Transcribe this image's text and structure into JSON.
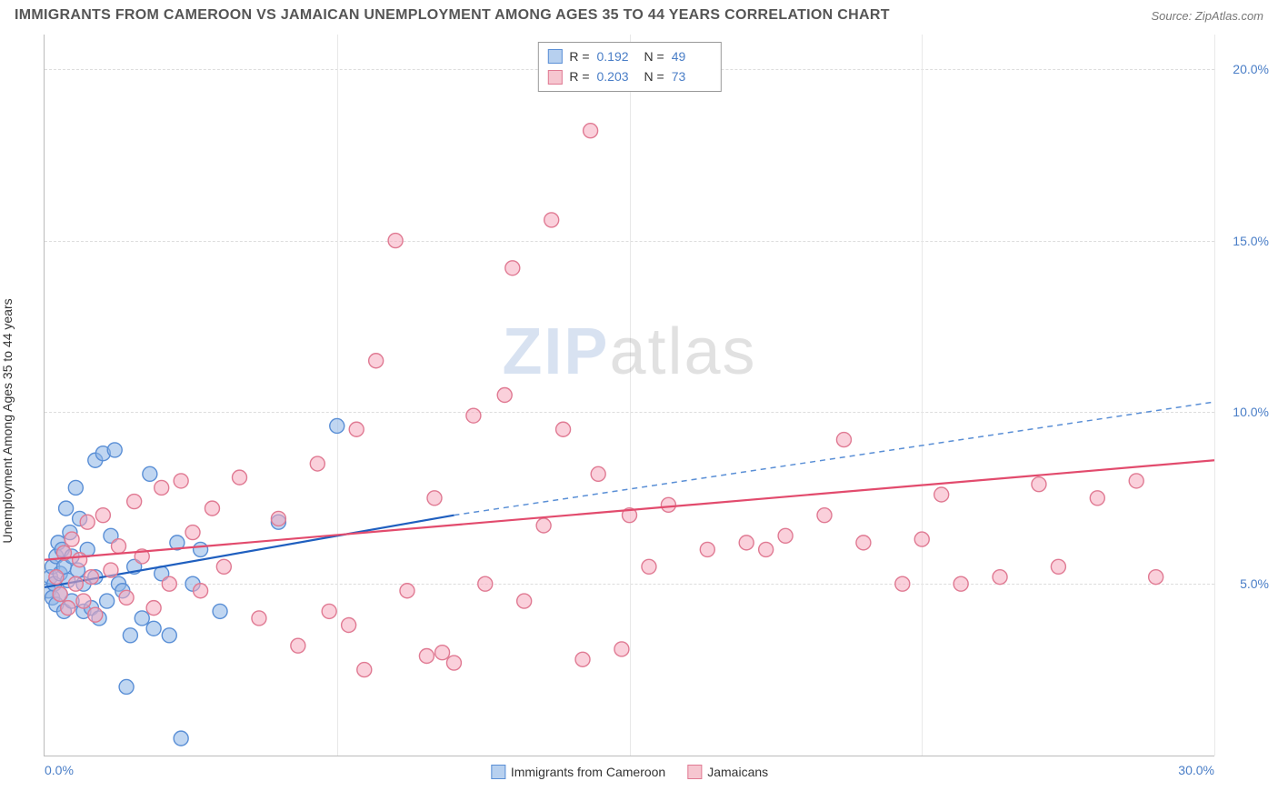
{
  "header": {
    "title": "IMMIGRANTS FROM CAMEROON VS JAMAICAN UNEMPLOYMENT AMONG AGES 35 TO 44 YEARS CORRELATION CHART",
    "source": "Source: ZipAtlas.com"
  },
  "watermark": {
    "zip": "ZIP",
    "atlas": "atlas"
  },
  "axes": {
    "ylabel": "Unemployment Among Ages 35 to 44 years",
    "xlim": [
      0,
      30
    ],
    "ylim": [
      0,
      21
    ],
    "y_ticks": [
      {
        "v": 5,
        "label": "5.0%"
      },
      {
        "v": 10,
        "label": "10.0%"
      },
      {
        "v": 15,
        "label": "15.0%"
      },
      {
        "v": 20,
        "label": "20.0%"
      }
    ],
    "x_ticks": [
      {
        "v": 0,
        "label": "0.0%",
        "cls": "left"
      },
      {
        "v": 30,
        "label": "30.0%",
        "cls": "right"
      }
    ],
    "v_grid": [
      7.5,
      15,
      22.5,
      30
    ],
    "grid_color": "#dddddd"
  },
  "legend_top": {
    "series": [
      {
        "swatch_fill": "#b7d0ef",
        "swatch_border": "#5a8fd6",
        "r_label": "R =",
        "r": "0.192",
        "n_label": "N =",
        "n": "49"
      },
      {
        "swatch_fill": "#f6c6d0",
        "swatch_border": "#e07a93",
        "r_label": "R =",
        "r": "0.203",
        "n_label": "N =",
        "n": "73"
      }
    ]
  },
  "legend_bottom": {
    "items": [
      {
        "swatch_fill": "#b7d0ef",
        "swatch_border": "#5a8fd6",
        "label": "Immigrants from Cameroon"
      },
      {
        "swatch_fill": "#f6c6d0",
        "swatch_border": "#e07a93",
        "label": "Jamaicans"
      }
    ]
  },
  "chart": {
    "type": "scatter",
    "marker_radius": 8,
    "marker_stroke_w": 1.4,
    "background_color": "#ffffff",
    "series": [
      {
        "key": "cameroon",
        "fill": "rgba(140,180,230,0.55)",
        "stroke": "#5a8fd6",
        "trend": {
          "x0": 0,
          "y0": 4.9,
          "x1": 10.5,
          "y1": 7.0,
          "color": "#1f5fbf",
          "width": 2.2
        },
        "trend_ext": {
          "x0": 10.5,
          "y0": 7.0,
          "x1": 30,
          "y1": 10.3,
          "color": "#5a8fd6",
          "dash": "6 5",
          "width": 1.5
        },
        "points": [
          [
            0.1,
            4.8
          ],
          [
            0.15,
            5.2
          ],
          [
            0.2,
            5.5
          ],
          [
            0.2,
            4.6
          ],
          [
            0.25,
            5.0
          ],
          [
            0.3,
            5.8
          ],
          [
            0.3,
            4.4
          ],
          [
            0.35,
            6.2
          ],
          [
            0.4,
            5.3
          ],
          [
            0.4,
            4.7
          ],
          [
            0.45,
            6.0
          ],
          [
            0.5,
            5.5
          ],
          [
            0.5,
            4.2
          ],
          [
            0.55,
            7.2
          ],
          [
            0.6,
            5.1
          ],
          [
            0.65,
            6.5
          ],
          [
            0.7,
            5.8
          ],
          [
            0.7,
            4.5
          ],
          [
            0.8,
            7.8
          ],
          [
            0.85,
            5.4
          ],
          [
            0.9,
            6.9
          ],
          [
            1.0,
            5.0
          ],
          [
            1.0,
            4.2
          ],
          [
            1.1,
            6.0
          ],
          [
            1.2,
            4.3
          ],
          [
            1.3,
            8.6
          ],
          [
            1.3,
            5.2
          ],
          [
            1.4,
            4.0
          ],
          [
            1.5,
            8.8
          ],
          [
            1.6,
            4.5
          ],
          [
            1.7,
            6.4
          ],
          [
            1.8,
            8.9
          ],
          [
            1.9,
            5.0
          ],
          [
            2.0,
            4.8
          ],
          [
            2.1,
            2.0
          ],
          [
            2.2,
            3.5
          ],
          [
            2.3,
            5.5
          ],
          [
            2.5,
            4.0
          ],
          [
            2.7,
            8.2
          ],
          [
            2.8,
            3.7
          ],
          [
            3.0,
            5.3
          ],
          [
            3.2,
            3.5
          ],
          [
            3.4,
            6.2
          ],
          [
            3.5,
            0.5
          ],
          [
            3.8,
            5.0
          ],
          [
            4.0,
            6.0
          ],
          [
            4.5,
            4.2
          ],
          [
            6.0,
            6.8
          ],
          [
            7.5,
            9.6
          ]
        ]
      },
      {
        "key": "jamaicans",
        "fill": "rgba(245,170,190,0.55)",
        "stroke": "#e07a93",
        "trend": {
          "x0": 0,
          "y0": 5.7,
          "x1": 30,
          "y1": 8.6,
          "color": "#e24b6d",
          "width": 2.2
        },
        "points": [
          [
            0.3,
            5.2
          ],
          [
            0.4,
            4.7
          ],
          [
            0.5,
            5.9
          ],
          [
            0.6,
            4.3
          ],
          [
            0.7,
            6.3
          ],
          [
            0.8,
            5.0
          ],
          [
            0.9,
            5.7
          ],
          [
            1.0,
            4.5
          ],
          [
            1.1,
            6.8
          ],
          [
            1.2,
            5.2
          ],
          [
            1.3,
            4.1
          ],
          [
            1.5,
            7.0
          ],
          [
            1.7,
            5.4
          ],
          [
            1.9,
            6.1
          ],
          [
            2.1,
            4.6
          ],
          [
            2.3,
            7.4
          ],
          [
            2.5,
            5.8
          ],
          [
            2.8,
            4.3
          ],
          [
            3.0,
            7.8
          ],
          [
            3.2,
            5.0
          ],
          [
            3.5,
            8.0
          ],
          [
            3.8,
            6.5
          ],
          [
            4.0,
            4.8
          ],
          [
            4.3,
            7.2
          ],
          [
            4.6,
            5.5
          ],
          [
            5.0,
            8.1
          ],
          [
            5.5,
            4.0
          ],
          [
            6.0,
            6.9
          ],
          [
            6.5,
            3.2
          ],
          [
            7.0,
            8.5
          ],
          [
            7.3,
            4.2
          ],
          [
            7.8,
            3.8
          ],
          [
            8.0,
            9.5
          ],
          [
            8.2,
            2.5
          ],
          [
            8.5,
            11.5
          ],
          [
            9.0,
            15.0
          ],
          [
            9.3,
            4.8
          ],
          [
            9.8,
            2.9
          ],
          [
            10.0,
            7.5
          ],
          [
            10.2,
            3.0
          ],
          [
            10.5,
            2.7
          ],
          [
            11.0,
            9.9
          ],
          [
            11.3,
            5.0
          ],
          [
            11.8,
            10.5
          ],
          [
            12.0,
            14.2
          ],
          [
            12.3,
            4.5
          ],
          [
            12.8,
            6.7
          ],
          [
            13.0,
            15.6
          ],
          [
            13.3,
            9.5
          ],
          [
            13.8,
            2.8
          ],
          [
            14.0,
            18.2
          ],
          [
            14.2,
            8.2
          ],
          [
            14.8,
            3.1
          ],
          [
            15.0,
            7.0
          ],
          [
            15.5,
            5.5
          ],
          [
            16.0,
            7.3
          ],
          [
            17.0,
            6.0
          ],
          [
            18.0,
            6.2
          ],
          [
            18.5,
            6.0
          ],
          [
            19.0,
            6.4
          ],
          [
            20.0,
            7.0
          ],
          [
            20.5,
            9.2
          ],
          [
            21.0,
            6.2
          ],
          [
            22.0,
            5.0
          ],
          [
            22.5,
            6.3
          ],
          [
            23.0,
            7.6
          ],
          [
            23.5,
            5.0
          ],
          [
            24.5,
            5.2
          ],
          [
            25.5,
            7.9
          ],
          [
            26.0,
            5.5
          ],
          [
            27.0,
            7.5
          ],
          [
            28.0,
            8.0
          ],
          [
            28.5,
            5.2
          ]
        ]
      }
    ]
  }
}
